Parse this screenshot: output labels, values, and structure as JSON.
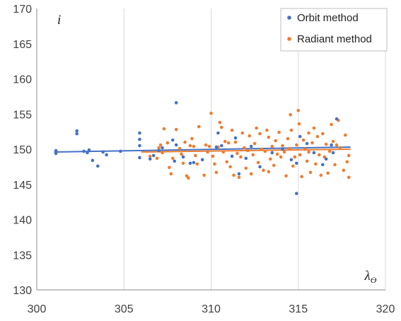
{
  "chart_data": {
    "type": "scatter",
    "xlabel": "λ_ϴ",
    "ylabel": "i",
    "xlim": [
      300,
      320
    ],
    "ylim": [
      130,
      170
    ],
    "x_ticks": [
      300,
      305,
      310,
      315,
      320
    ],
    "y_ticks": [
      130,
      135,
      140,
      145,
      150,
      155,
      160,
      165,
      170
    ],
    "x_tick_labels": [
      "300",
      "305",
      "310",
      "315",
      "320"
    ],
    "y_tick_labels": [
      "130",
      "135",
      "140",
      "145",
      "150",
      "155",
      "160",
      "165",
      "170"
    ],
    "grid": "vertical",
    "legend_position": "top-right",
    "series": [
      {
        "name": "Orbit method",
        "color": "#4472C4",
        "trendline": [
          [
            301.0,
            149.6
          ],
          [
            318.0,
            150.3
          ]
        ],
        "points": [
          [
            301.1,
            149.8
          ],
          [
            301.1,
            149.4
          ],
          [
            302.3,
            152.6
          ],
          [
            302.3,
            152.2
          ],
          [
            302.7,
            149.7
          ],
          [
            302.9,
            149.5
          ],
          [
            303.0,
            149.9
          ],
          [
            303.2,
            148.4
          ],
          [
            303.5,
            147.6
          ],
          [
            303.8,
            149.6
          ],
          [
            304.0,
            149.2
          ],
          [
            304.8,
            149.7
          ],
          [
            305.9,
            152.3
          ],
          [
            305.9,
            151.4
          ],
          [
            305.9,
            150.5
          ],
          [
            305.9,
            148.8
          ],
          [
            306.5,
            148.6
          ],
          [
            306.7,
            149.1
          ],
          [
            307.0,
            149.8
          ],
          [
            307.2,
            150.2
          ],
          [
            307.8,
            151.3
          ],
          [
            307.9,
            148.3
          ],
          [
            308.0,
            156.6
          ],
          [
            308.0,
            150.6
          ],
          [
            308.4,
            148.9
          ],
          [
            308.8,
            148.0
          ],
          [
            309.0,
            148.1
          ],
          [
            309.5,
            148.5
          ],
          [
            310.3,
            150.3
          ],
          [
            310.4,
            152.3
          ],
          [
            310.6,
            150.5
          ],
          [
            311.2,
            149.0
          ],
          [
            311.4,
            151.6
          ],
          [
            311.6,
            146.5
          ],
          [
            312.0,
            148.7
          ],
          [
            312.3,
            150.4
          ],
          [
            312.8,
            147.5
          ],
          [
            313.5,
            149.5
          ],
          [
            314.1,
            150.0
          ],
          [
            314.6,
            148.5
          ],
          [
            314.9,
            148.0
          ],
          [
            314.9,
            143.7
          ],
          [
            315.1,
            151.8
          ],
          [
            315.5,
            150.8
          ],
          [
            315.9,
            149.5
          ],
          [
            316.4,
            147.8
          ],
          [
            316.6,
            148.6
          ],
          [
            316.9,
            150.6
          ],
          [
            317.2,
            154.3
          ],
          [
            317.0,
            149.5
          ]
        ]
      },
      {
        "name": "Radiant method",
        "color": "#ED7D31",
        "trendline": [
          [
            306.0,
            149.6
          ],
          [
            318.0,
            150.0
          ]
        ],
        "points": [
          [
            306.5,
            149.0
          ],
          [
            306.9,
            148.7
          ],
          [
            307.0,
            150.2
          ],
          [
            307.2,
            149.5
          ],
          [
            307.3,
            152.9
          ],
          [
            307.5,
            150.9
          ],
          [
            307.6,
            147.4
          ],
          [
            307.7,
            146.5
          ],
          [
            307.8,
            148.7
          ],
          [
            308.0,
            152.8
          ],
          [
            308.2,
            150.1
          ],
          [
            308.3,
            149.3
          ],
          [
            308.4,
            148.0
          ],
          [
            308.5,
            151.0
          ],
          [
            308.6,
            146.2
          ],
          [
            308.7,
            145.9
          ],
          [
            308.8,
            150.5
          ],
          [
            308.9,
            151.5
          ],
          [
            309.0,
            150.4
          ],
          [
            309.1,
            149.1
          ],
          [
            309.3,
            153.2
          ],
          [
            309.5,
            148.5
          ],
          [
            309.6,
            146.3
          ],
          [
            309.7,
            150.6
          ],
          [
            309.8,
            149.6
          ],
          [
            309.9,
            150.4
          ],
          [
            310.0,
            155.1
          ],
          [
            310.1,
            149.0
          ],
          [
            310.2,
            147.9
          ],
          [
            310.3,
            146.7
          ],
          [
            310.4,
            150.3
          ],
          [
            310.5,
            153.8
          ],
          [
            310.6,
            153.1
          ],
          [
            310.7,
            149.6
          ],
          [
            310.8,
            151.1
          ],
          [
            310.9,
            148.2
          ],
          [
            311.0,
            150.9
          ],
          [
            311.2,
            152.7
          ],
          [
            311.3,
            146.3
          ],
          [
            311.4,
            151.0
          ],
          [
            311.5,
            149.4
          ],
          [
            311.6,
            146.0
          ],
          [
            311.7,
            148.9
          ],
          [
            311.8,
            152.3
          ],
          [
            311.9,
            150.2
          ],
          [
            312.0,
            147.3
          ],
          [
            312.1,
            149.8
          ],
          [
            312.2,
            151.9
          ],
          [
            312.3,
            146.5
          ],
          [
            312.4,
            149.2
          ],
          [
            312.5,
            150.8
          ],
          [
            312.6,
            153.0
          ],
          [
            312.7,
            148.1
          ],
          [
            312.8,
            152.2
          ],
          [
            312.9,
            150.0
          ],
          [
            313.0,
            147.0
          ],
          [
            313.1,
            149.7
          ],
          [
            313.2,
            152.7
          ],
          [
            313.3,
            151.7
          ],
          [
            313.4,
            148.6
          ],
          [
            313.5,
            150.4
          ],
          [
            313.6,
            147.7
          ],
          [
            313.7,
            151.2
          ],
          [
            313.8,
            149.3
          ],
          [
            313.9,
            152.4
          ],
          [
            314.0,
            148.9
          ],
          [
            314.1,
            150.5
          ],
          [
            314.2,
            149.6
          ],
          [
            314.3,
            146.2
          ],
          [
            314.4,
            151.5
          ],
          [
            314.5,
            150.1
          ],
          [
            314.55,
            154.9
          ],
          [
            314.6,
            152.7
          ],
          [
            314.7,
            147.6
          ],
          [
            314.8,
            148.9
          ],
          [
            314.9,
            150.6
          ],
          [
            315.0,
            155.5
          ],
          [
            315.05,
            153.6
          ],
          [
            315.1,
            149.2
          ],
          [
            315.2,
            146.1
          ],
          [
            315.3,
            151.3
          ],
          [
            315.4,
            150.0
          ],
          [
            315.5,
            148.3
          ],
          [
            315.6,
            152.3
          ],
          [
            315.7,
            146.7
          ],
          [
            315.8,
            150.9
          ],
          [
            315.9,
            153.0
          ],
          [
            316.0,
            147.9
          ],
          [
            316.1,
            151.8
          ],
          [
            316.2,
            149.2
          ],
          [
            316.3,
            146.3
          ],
          [
            316.4,
            152.2
          ],
          [
            316.5,
            148.9
          ],
          [
            316.6,
            150.7
          ],
          [
            316.7,
            146.6
          ],
          [
            316.8,
            149.7
          ],
          [
            316.9,
            153.5
          ],
          [
            317.0,
            151.1
          ],
          [
            317.1,
            147.8
          ],
          [
            317.2,
            150.6
          ],
          [
            317.3,
            154.1
          ],
          [
            317.4,
            150.2
          ],
          [
            317.6,
            147.0
          ],
          [
            317.7,
            152.0
          ],
          [
            317.8,
            148.2
          ],
          [
            317.9,
            146.0
          ],
          [
            317.9,
            149.1
          ],
          [
            307.1,
            150.6
          ],
          [
            309.2,
            147.9
          ],
          [
            311.1,
            147.5
          ],
          [
            313.3,
            146.8
          ],
          [
            315.6,
            149.6
          ]
        ]
      }
    ]
  }
}
